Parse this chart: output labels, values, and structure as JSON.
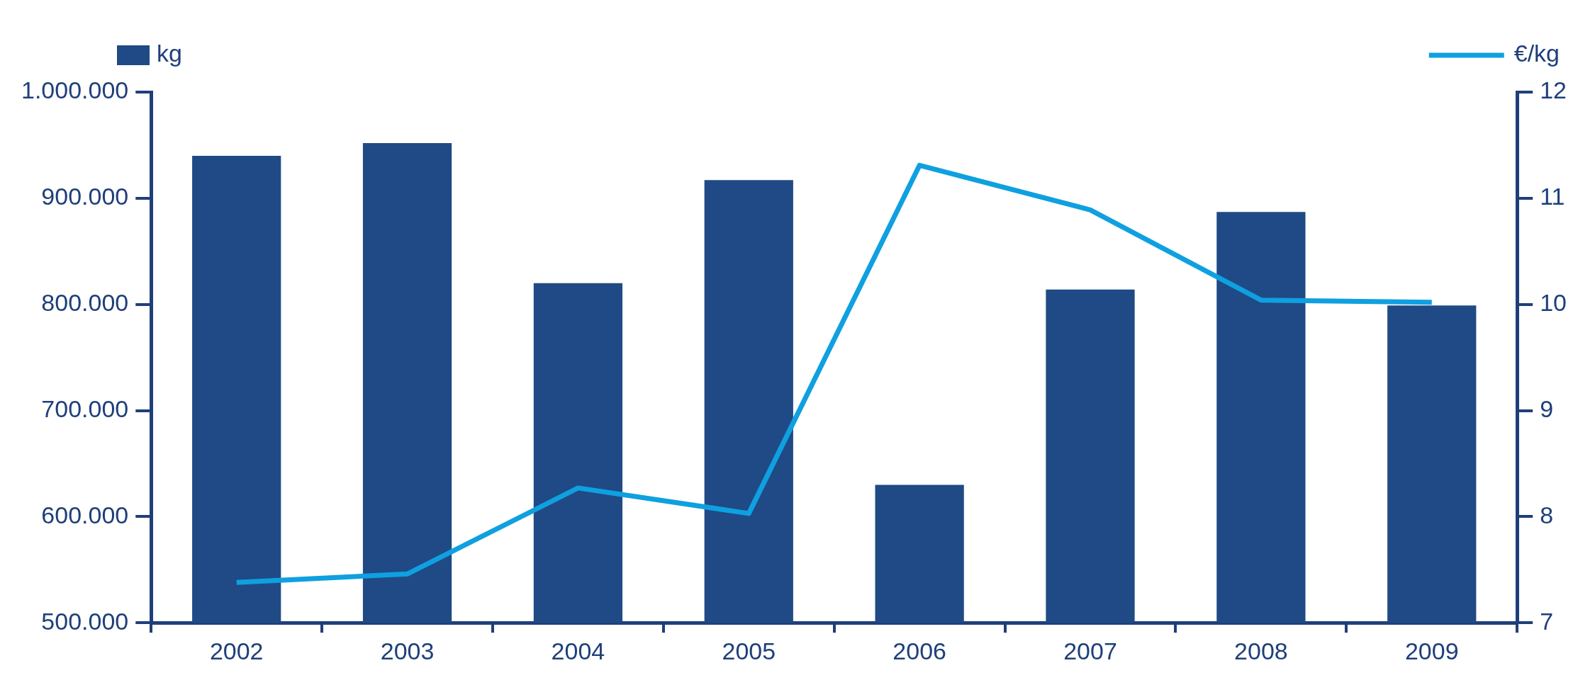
{
  "chart_data": {
    "type": "bar",
    "categories": [
      "2002",
      "2003",
      "2004",
      "2005",
      "2006",
      "2007",
      "2008",
      "2009"
    ],
    "series": [
      {
        "name": "kg",
        "color": "#1f4a85",
        "values": [
          940000,
          952000,
          820000,
          917000,
          630000,
          814000,
          887000,
          799000
        ]
      },
      {
        "name": "€/kg",
        "type": "line",
        "axis": "y2",
        "color": "#0fa0e0",
        "values": [
          7.38,
          7.46,
          8.27,
          8.03,
          11.31,
          10.89,
          10.04,
          10.02
        ]
      }
    ],
    "ylim": [
      500000,
      1000000
    ],
    "yticks": [
      {
        "value": 500000,
        "label": "500.000"
      },
      {
        "value": 600000,
        "label": "600.000"
      },
      {
        "value": 700000,
        "label": "700.000"
      },
      {
        "value": 800000,
        "label": "800.000"
      },
      {
        "value": 900000,
        "label": "900.000"
      },
      {
        "value": 1000000,
        "label": "1.000.000"
      }
    ],
    "y2lim": [
      7,
      12
    ],
    "y2ticks": [
      7,
      8,
      9,
      10,
      11,
      12
    ],
    "grid": false,
    "legend": "top",
    "marker": "none",
    "line_style": "solid"
  }
}
